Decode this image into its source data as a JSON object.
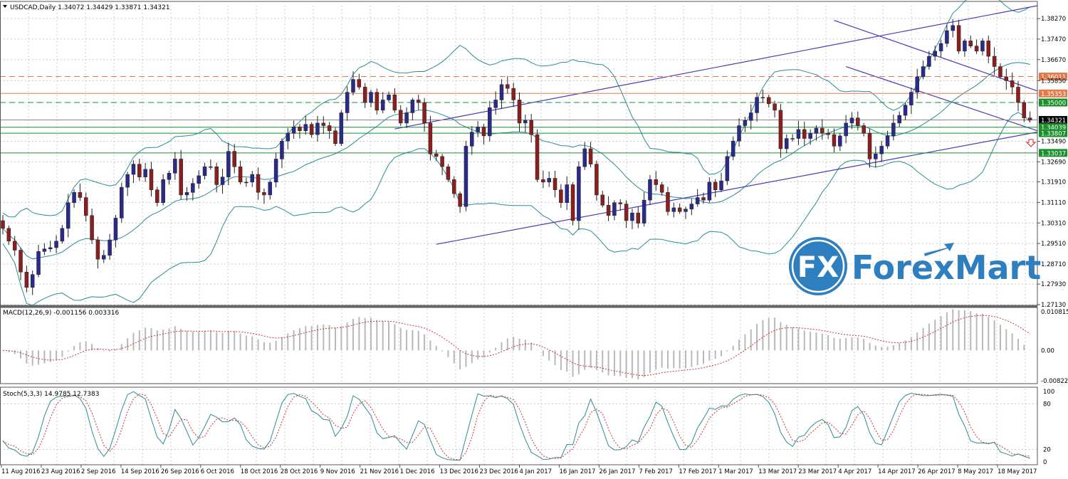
{
  "chart_data": [
    {
      "type": "candlestick",
      "title": "USDCAD,Daily",
      "ohlc_header": "1.34072 1.34429 1.33871 1.34321",
      "y_ticks": [
        "1.38270",
        "1.37470",
        "1.36670",
        "1.35850",
        "1.35000",
        "1.34321",
        "1.33490",
        "1.32690",
        "1.31910",
        "1.31110",
        "1.30310",
        "1.29510",
        "1.28710",
        "1.27930",
        "1.27130"
      ],
      "ylim": [
        1.2713,
        1.3877
      ],
      "x_ticks": [
        "11 Aug 2016",
        "23 Aug 2016",
        "2 Sep 2016",
        "14 Sep 2016",
        "26 Sep 2016",
        "6 Oct 2016",
        "18 Oct 2016",
        "28 Oct 2016",
        "9 Nov 2016",
        "21 Nov 2016",
        "1 Dec 2016",
        "13 Dec 2016",
        "23 Dec 2016",
        "4 Jan 2017",
        "16 Jan 2017",
        "26 Jan 2017",
        "7 Feb 2017",
        "17 Feb 2017",
        "1 Mar 2017",
        "13 Mar 2017",
        "23 Mar 2017",
        "4 Apr 2017",
        "14 Apr 2017",
        "26 Apr 2017",
        "8 May 2017",
        "18 May 2017"
      ],
      "price_levels": [
        {
          "value": 1.36011,
          "label": "1.36011",
          "style": "dashed",
          "color": "#e07a4a"
        },
        {
          "value": 1.35353,
          "label": "1.35353",
          "style": "solid",
          "color": "#e07a4a"
        },
        {
          "value": 1.35,
          "label": "1.35000",
          "style": "dashed",
          "color": "#1a8f2a"
        },
        {
          "value": 1.34321,
          "label": "1.34321",
          "style": "solid",
          "color": "#888888"
        },
        {
          "value": 1.34039,
          "label": "1.34039",
          "style": "solid",
          "color": "#1a8f2a"
        },
        {
          "value": 1.33807,
          "label": "1.33807",
          "style": "solid",
          "color": "#1a8f2a"
        },
        {
          "value": 1.33037,
          "label": "1.33037",
          "style": "solid",
          "color": "#1a8f2a"
        }
      ],
      "closes": [
        1.301,
        1.296,
        1.2925,
        1.284,
        1.278,
        1.283,
        1.292,
        1.293,
        1.2935,
        1.296,
        1.301,
        1.311,
        1.315,
        1.313,
        1.306,
        1.2965,
        1.289,
        1.2905,
        1.2965,
        1.305,
        1.317,
        1.322,
        1.326,
        1.321,
        1.324,
        1.316,
        1.311,
        1.32,
        1.3225,
        1.328,
        1.314,
        1.315,
        1.3185,
        1.3215,
        1.325,
        1.325,
        1.318,
        1.321,
        1.331,
        1.325,
        1.319,
        1.319,
        1.322,
        1.315,
        1.314,
        1.319,
        1.328,
        1.335,
        1.338,
        1.3405,
        1.339,
        1.3415,
        1.3375,
        1.342,
        1.341,
        1.339,
        1.334,
        1.346,
        1.354,
        1.359,
        1.356,
        1.35,
        1.354,
        1.347,
        1.351,
        1.353,
        1.347,
        1.342,
        1.346,
        1.351,
        1.35,
        1.342,
        1.33,
        1.329,
        1.325,
        1.32,
        1.3145,
        1.3095,
        1.333,
        1.3385,
        1.3405,
        1.337,
        1.348,
        1.351,
        1.357,
        1.3555,
        1.351,
        1.342,
        1.343,
        1.3375,
        1.32,
        1.319,
        1.3205,
        1.316,
        1.311,
        1.318,
        1.304,
        1.325,
        1.332,
        1.326,
        1.314,
        1.31,
        1.306,
        1.311,
        1.3105,
        1.304,
        1.307,
        1.303,
        1.312,
        1.32,
        1.318,
        1.315,
        1.3075,
        1.309,
        1.3075,
        1.3085,
        1.3105,
        1.313,
        1.312,
        1.319,
        1.316,
        1.3195,
        1.329,
        1.335,
        1.341,
        1.343,
        1.346,
        1.352,
        1.352,
        1.3495,
        1.347,
        1.332,
        1.336,
        1.336,
        1.3395,
        1.336,
        1.338,
        1.34,
        1.338,
        1.3375,
        1.333,
        1.337,
        1.342,
        1.344,
        1.341,
        1.338,
        1.328,
        1.33,
        1.333,
        1.337,
        1.342,
        1.345,
        1.349,
        1.354,
        1.36,
        1.364,
        1.368,
        1.37,
        1.373,
        1.378,
        1.38,
        1.37,
        1.374,
        1.372,
        1.37,
        1.374,
        1.368,
        1.364,
        1.36,
        1.3585,
        1.356,
        1.35,
        1.344,
        1.3432
      ]
    },
    {
      "type": "histogram+line",
      "title": "MACD(12,26,9) -0.001156 0.003316",
      "y_ticks": [
        "0.010815",
        "0.00",
        "-0.008222"
      ],
      "ylim": [
        -0.0088,
        0.011
      ]
    },
    {
      "type": "line",
      "title": "Stoch(5,3,3) 14.9785 12.7383",
      "y_ticks": [
        "100",
        "80",
        "20",
        "0"
      ],
      "ylim": [
        0,
        100
      ]
    }
  ],
  "watermark": {
    "text": "ForexMart",
    "icon_text": "FX"
  },
  "colors": {
    "bull": "#2a2a8c",
    "bear": "#8b1f1f",
    "bands": "#2b8c95",
    "channel": "#4a3ab8",
    "signal": "#cc3333",
    "grid": "#c8c8c8",
    "brand": "#2e7fbf"
  }
}
